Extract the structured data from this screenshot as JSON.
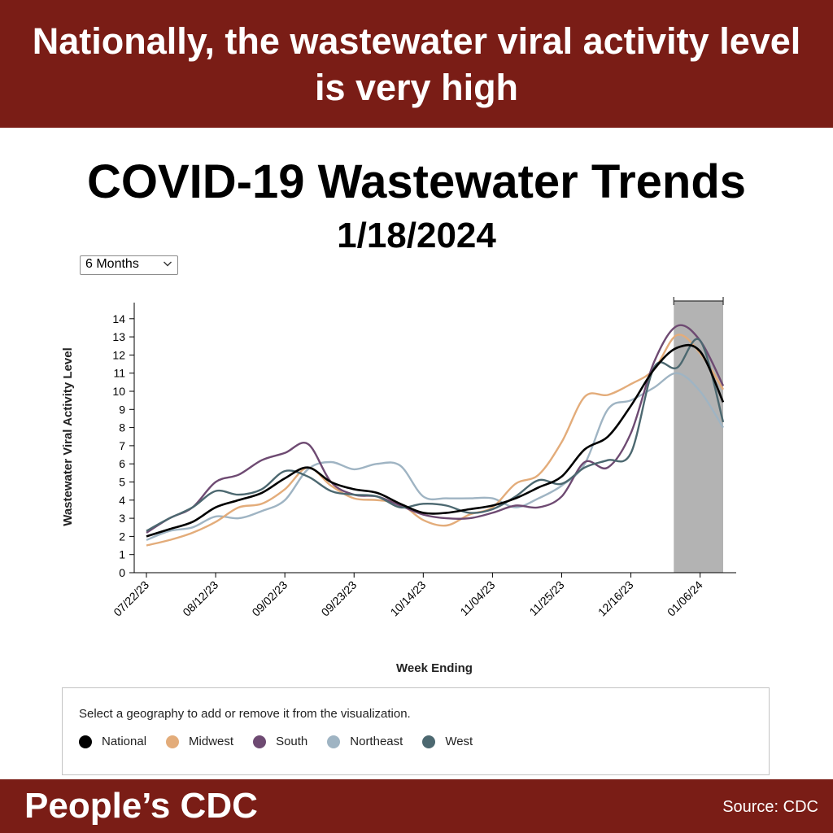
{
  "header": {
    "banner_text": "Nationally, the wastewater viral activity level is very high"
  },
  "controls": {
    "range_selected": "6 Months"
  },
  "legend": {
    "hint": "Select a geography to add or remove it from the visualization."
  },
  "footer": {
    "brand": "People’s CDC",
    "source": "Source: CDC"
  },
  "chart_data": {
    "type": "line",
    "title": "COVID-19 Wastewater Trends",
    "subtitle": "1/18/2024",
    "xlabel": "Week Ending",
    "ylabel": "Wastewater Viral Activity Level",
    "ylim": [
      0,
      14
    ],
    "xlim": [
      "07/22/23",
      "01/13/24"
    ],
    "y_ticks": [
      0,
      1,
      2,
      3,
      4,
      5,
      6,
      7,
      8,
      9,
      10,
      11,
      12,
      13,
      14
    ],
    "x_ticks": [
      "07/22/23",
      "08/12/23",
      "09/02/23",
      "09/23/23",
      "10/14/23",
      "11/04/23",
      "11/25/23",
      "12/16/23",
      "01/06/24"
    ],
    "highlight_range": [
      "12/30/23",
      "01/13/24"
    ],
    "grid": false,
    "legend_position": "bottom",
    "x": [
      "07/22/23",
      "07/29/23",
      "08/05/23",
      "08/12/23",
      "08/19/23",
      "08/26/23",
      "09/02/23",
      "09/09/23",
      "09/16/23",
      "09/23/23",
      "09/30/23",
      "10/07/23",
      "10/14/23",
      "10/21/23",
      "10/28/23",
      "11/04/23",
      "11/11/23",
      "11/18/23",
      "11/25/23",
      "12/02/23",
      "12/09/23",
      "12/16/23",
      "12/23/23",
      "12/30/23",
      "01/06/24",
      "01/13/24"
    ],
    "series": [
      {
        "name": "National",
        "color": "#000000",
        "values": [
          2.0,
          2.4,
          2.8,
          3.6,
          4.0,
          4.4,
          5.2,
          5.8,
          5.0,
          4.6,
          4.4,
          3.8,
          3.3,
          3.3,
          3.5,
          3.7,
          4.1,
          4.7,
          5.3,
          6.8,
          7.5,
          9.2,
          11.2,
          12.4,
          12.2,
          9.4
        ]
      },
      {
        "name": "Midwest",
        "color": "#e3ac7a",
        "values": [
          1.5,
          1.8,
          2.2,
          2.8,
          3.6,
          3.8,
          4.6,
          5.8,
          4.8,
          4.1,
          4.0,
          3.8,
          2.9,
          2.6,
          3.2,
          3.6,
          4.9,
          5.4,
          7.2,
          9.7,
          9.8,
          10.4,
          11.2,
          13.1,
          12.1,
          10.1
        ]
      },
      {
        "name": "South",
        "color": "#6e4a72",
        "values": [
          2.2,
          3.0,
          3.6,
          5.0,
          5.4,
          6.2,
          6.6,
          7.1,
          5.0,
          4.3,
          4.2,
          3.7,
          3.2,
          3.0,
          3.0,
          3.3,
          3.7,
          3.6,
          4.2,
          6.1,
          5.8,
          7.7,
          11.6,
          13.6,
          12.8,
          10.3
        ]
      },
      {
        "name": "Northeast",
        "color": "#9fb4c3",
        "values": [
          1.8,
          2.3,
          2.5,
          3.1,
          3.0,
          3.4,
          4.0,
          5.7,
          6.1,
          5.7,
          6.0,
          5.9,
          4.2,
          4.1,
          4.1,
          4.1,
          3.6,
          4.1,
          4.8,
          6.0,
          9.0,
          9.5,
          10.2,
          11.0,
          10.0,
          8.0
        ]
      },
      {
        "name": "West",
        "color": "#4c6870",
        "values": [
          2.3,
          3.0,
          3.6,
          4.5,
          4.3,
          4.6,
          5.6,
          5.3,
          4.5,
          4.3,
          4.2,
          3.6,
          3.8,
          3.7,
          3.3,
          3.5,
          4.2,
          5.1,
          4.9,
          5.8,
          6.2,
          6.6,
          11.3,
          11.3,
          12.8,
          8.3
        ]
      }
    ]
  }
}
